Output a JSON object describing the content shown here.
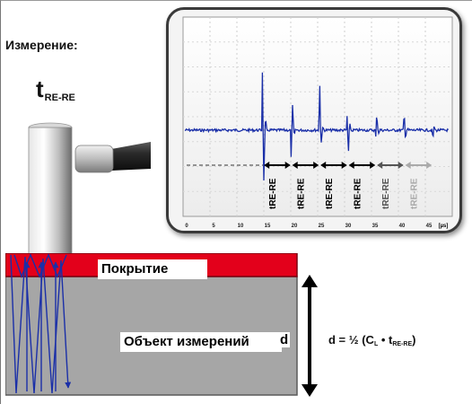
{
  "heading": "Измерение:",
  "symbol": {
    "main": "t",
    "sub": "RE-RE"
  },
  "oscilloscope": {
    "x_ticks": [
      "0",
      "5",
      "10",
      "15",
      "20",
      "25",
      "30",
      "35",
      "40",
      "45"
    ],
    "x_unit": "[µs]",
    "pulse_labels": [
      "tRE-RE",
      "tRE-RE",
      "tRE-RE",
      "tRE-RE",
      "tRE-RE",
      "tRE-RE"
    ],
    "trace_color": "#1a2fa8"
  },
  "specimen": {
    "coating_label": "Покрытие",
    "object_label": "Объект измерений",
    "thickness_symbol": "d",
    "coating_color": "#e3001b",
    "object_color": "#a6a6a6"
  },
  "formula": {
    "prefix": "d = ½ (C",
    "c_sub": "L",
    "middle": " • t",
    "t_sub": "RE-RE",
    "suffix": ")"
  }
}
